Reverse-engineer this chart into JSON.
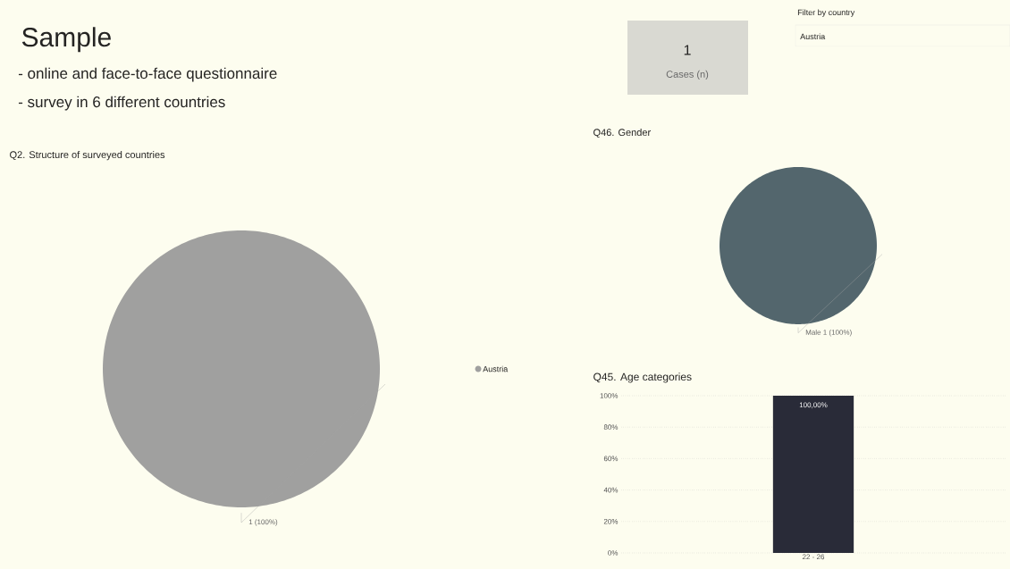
{
  "chart_data": [
    {
      "type": "other",
      "title": "Sample",
      "annotations": [
        "- online and face-to-face questionnaire",
        "- survey in 6 different countries",
        "Filter by country",
        "Austria"
      ],
      "categories": [
        "Cases (n)"
      ],
      "values": [
        1
      ],
      "data_labels": true
    },
    {
      "type": "pie",
      "title": "Q2. Structure of surveyed countries",
      "categories": [
        "Austria"
      ],
      "values": [
        1
      ],
      "colors": [
        "#a0a09f"
      ],
      "value_labels": [
        "1 (100%)"
      ],
      "legend": "right"
    },
    {
      "type": "pie",
      "title": "Q46. Gender",
      "categories": [
        "Male"
      ],
      "values": [
        1
      ],
      "colors": [
        "#53666d"
      ],
      "value_labels": [
        "1 (100%)"
      ]
    },
    {
      "type": "bar",
      "title": "Q45. Age categories",
      "categories": [
        "22 - 26"
      ],
      "values": [
        100
      ],
      "color": "#292b38",
      "value_labels": [
        "100,00%"
      ],
      "ylim": [
        0,
        100
      ],
      "yticks": [
        {
          "value": 0,
          "label": "0%"
        },
        {
          "value": 20,
          "label": "20%"
        },
        {
          "value": 40,
          "label": "40%"
        },
        {
          "value": 60,
          "label": "60%"
        },
        {
          "value": 80,
          "label": "80%"
        },
        {
          "value": 100,
          "label": "100%"
        }
      ],
      "grid": "y"
    }
  ]
}
